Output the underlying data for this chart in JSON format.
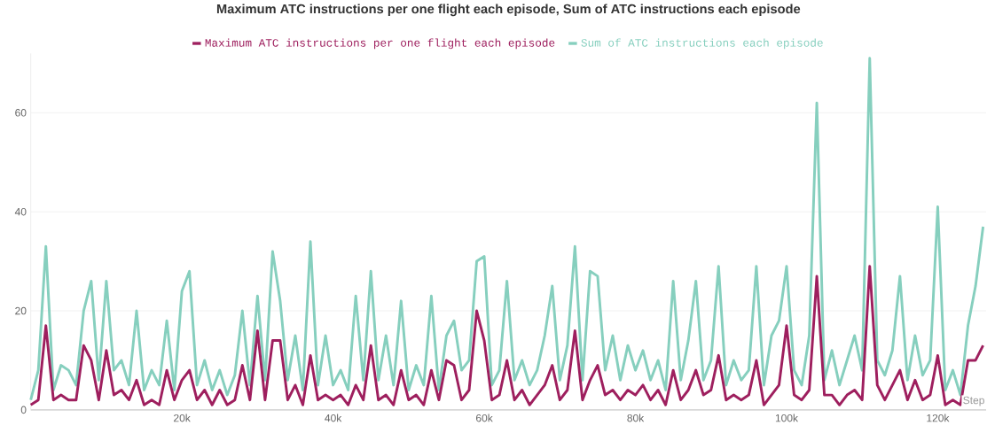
{
  "chart_data": {
    "type": "line",
    "title": "Maximum ATC instructions per one flight each episode, Sum of ATC instructions each episode",
    "xlabel": "Step",
    "x": [
      0,
      1000,
      2000,
      3000,
      4000,
      5000,
      6000,
      7000,
      8000,
      9000,
      10000,
      11000,
      12000,
      13000,
      14000,
      15000,
      16000,
      17000,
      18000,
      19000,
      20000,
      21000,
      22000,
      23000,
      24000,
      25000,
      26000,
      27000,
      28000,
      29000,
      30000,
      31000,
      32000,
      33000,
      34000,
      35000,
      36000,
      37000,
      38000,
      39000,
      40000,
      41000,
      42000,
      43000,
      44000,
      45000,
      46000,
      47000,
      48000,
      49000,
      50000,
      51000,
      52000,
      53000,
      54000,
      55000,
      56000,
      57000,
      58000,
      59000,
      60000,
      61000,
      62000,
      63000,
      64000,
      65000,
      66000,
      67000,
      68000,
      69000,
      70000,
      71000,
      72000,
      73000,
      74000,
      75000,
      76000,
      77000,
      78000,
      79000,
      80000,
      81000,
      82000,
      83000,
      84000,
      85000,
      86000,
      87000,
      88000,
      89000,
      90000,
      91000,
      92000,
      93000,
      94000,
      95000,
      96000,
      97000,
      98000,
      99000,
      100000,
      101000,
      102000,
      103000,
      104000,
      105000,
      106000,
      107000,
      108000,
      109000,
      110000,
      111000,
      112000,
      113000,
      114000,
      115000,
      116000,
      117000,
      118000,
      119000,
      120000,
      121000,
      122000,
      123000,
      124000,
      125000,
      126000
    ],
    "series": [
      {
        "name": "Maximum ATC instructions per one flight each episode",
        "color": "#9e1f5e",
        "values": [
          1,
          2,
          17,
          2,
          3,
          2,
          2,
          13,
          10,
          2,
          12,
          3,
          4,
          2,
          6,
          1,
          2,
          1,
          8,
          2,
          6,
          8,
          2,
          4,
          1,
          4,
          1,
          2,
          9,
          2,
          16,
          2,
          14,
          14,
          2,
          5,
          1,
          11,
          2,
          3,
          2,
          3,
          1,
          5,
          2,
          13,
          2,
          3,
          1,
          8,
          2,
          3,
          1,
          8,
          2,
          10,
          9,
          2,
          4,
          20,
          14,
          2,
          3,
          10,
          2,
          4,
          1,
          3,
          5,
          9,
          2,
          4,
          16,
          2,
          6,
          9,
          3,
          4,
          2,
          4,
          3,
          5,
          2,
          4,
          1,
          8,
          2,
          4,
          8,
          3,
          4,
          11,
          2,
          3,
          2,
          3,
          10,
          1,
          3,
          5,
          17,
          3,
          2,
          4,
          27,
          3,
          3,
          1,
          3,
          4,
          2,
          29,
          5,
          2,
          5,
          8,
          2,
          6,
          2,
          3,
          11,
          1,
          2,
          1,
          10,
          10,
          13
        ]
      },
      {
        "name": "Sum of ATC instructions each episode",
        "color": "#86cfbe",
        "values": [
          2,
          8,
          33,
          4,
          9,
          8,
          5,
          20,
          26,
          6,
          26,
          8,
          10,
          5,
          20,
          4,
          8,
          5,
          18,
          4,
          24,
          28,
          5,
          10,
          4,
          8,
          3,
          7,
          20,
          5,
          23,
          6,
          32,
          22,
          6,
          15,
          4,
          34,
          5,
          15,
          5,
          8,
          4,
          23,
          6,
          28,
          6,
          15,
          5,
          22,
          4,
          9,
          5,
          23,
          4,
          15,
          18,
          8,
          10,
          30,
          31,
          5,
          8,
          26,
          6,
          10,
          5,
          8,
          15,
          25,
          6,
          13,
          33,
          6,
          28,
          27,
          8,
          15,
          6,
          13,
          8,
          12,
          6,
          10,
          4,
          26,
          6,
          14,
          26,
          6,
          10,
          29,
          5,
          10,
          6,
          8,
          29,
          5,
          15,
          18,
          29,
          8,
          5,
          15,
          62,
          6,
          12,
          5,
          10,
          15,
          8,
          71,
          10,
          7,
          12,
          27,
          6,
          15,
          7,
          10,
          41,
          4,
          8,
          3,
          17,
          25,
          37
        ]
      }
    ],
    "xlim": [
      0,
      126400
    ],
    "ylim": [
      0,
      72
    ],
    "xticks": [
      {
        "value": 20000,
        "label": "20k"
      },
      {
        "value": 40000,
        "label": "40k"
      },
      {
        "value": 60000,
        "label": "60k"
      },
      {
        "value": 80000,
        "label": "80k"
      },
      {
        "value": 100000,
        "label": "100k"
      },
      {
        "value": 120000,
        "label": "120k"
      }
    ],
    "yticks": [
      0,
      20,
      40,
      60
    ],
    "grid": "y",
    "legend": "top"
  }
}
